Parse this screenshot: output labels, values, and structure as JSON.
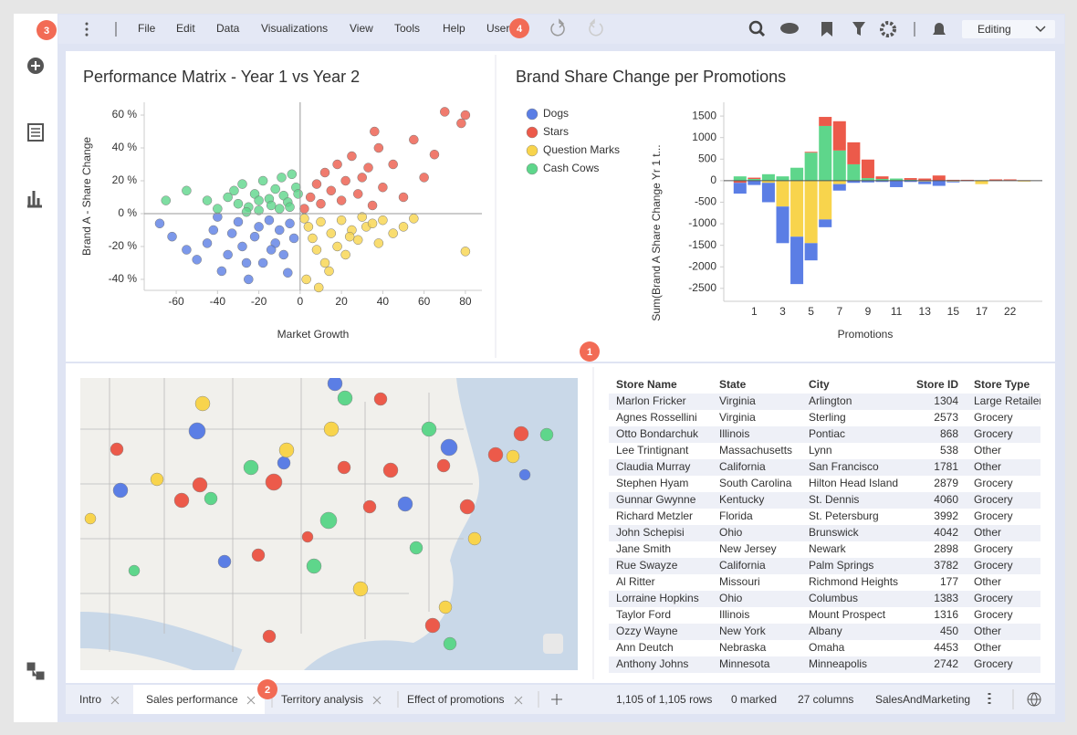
{
  "menu": [
    "File",
    "Edit",
    "Data",
    "Visualizations",
    "View",
    "Tools",
    "Help",
    "User"
  ],
  "mode": "Editing",
  "badges": [
    "3",
    "4",
    "1",
    "2"
  ],
  "chart_data": [
    {
      "type": "scatter",
      "title": "Performance Matrix - Year 1 vs Year 2",
      "x_label": "Market Growth",
      "y_label": "Brand A - Share Change",
      "xlim": [
        -75.5,
        88
      ],
      "ylim": [
        -46.7,
        67.8
      ],
      "xticks": [
        -60,
        -40,
        -20,
        0,
        20,
        40,
        60,
        80
      ],
      "yticks": [
        {
          "value": 60,
          "label": "60 %"
        },
        {
          "value": 40,
          "label": "40 %"
        },
        {
          "value": 20,
          "label": "20 %"
        },
        {
          "value": 0,
          "label": "0 %"
        },
        {
          "value": -20,
          "label": "-20 %"
        },
        {
          "value": -40,
          "label": "-40 %"
        }
      ],
      "series": [
        {
          "color": "#5b7ee5",
          "x": [
            -68,
            -62,
            -55,
            -50,
            -45,
            -42,
            -38,
            -35,
            -30,
            -28,
            -25,
            -22,
            -20,
            -18,
            -15,
            -12,
            -10,
            -8,
            -5,
            -3,
            -40,
            -33,
            -26,
            -14,
            -6
          ],
          "values": [
            -6,
            -14,
            -22,
            -28,
            -18,
            -10,
            -35,
            -25,
            -5,
            -20,
            -40,
            -14,
            -8,
            -30,
            -4,
            -18,
            -10,
            -25,
            -6,
            -15,
            -2,
            -12,
            -30,
            -22,
            -36
          ]
        },
        {
          "color": "#ec5a4a",
          "x": [
            2,
            5,
            8,
            10,
            12,
            15,
            18,
            20,
            22,
            25,
            28,
            30,
            33,
            35,
            38,
            40,
            45,
            50,
            55,
            60,
            65,
            70,
            78,
            80,
            36
          ],
          "values": [
            3,
            10,
            18,
            6,
            25,
            14,
            30,
            8,
            20,
            35,
            12,
            22,
            28,
            5,
            40,
            16,
            30,
            10,
            45,
            22,
            36,
            62,
            55,
            60,
            50
          ]
        },
        {
          "color": "#f8d44c",
          "x": [
            2,
            4,
            6,
            8,
            10,
            12,
            15,
            18,
            20,
            22,
            25,
            28,
            30,
            32,
            35,
            38,
            40,
            45,
            50,
            55,
            80,
            14,
            24,
            9,
            3
          ],
          "values": [
            -3,
            -8,
            -15,
            -22,
            -5,
            -30,
            -12,
            -20,
            -4,
            -25,
            -10,
            -16,
            -2,
            -8,
            -6,
            -18,
            -4,
            -12,
            -8,
            -3,
            -23,
            -35,
            -14,
            -45,
            -40
          ]
        },
        {
          "color": "#5ed68b",
          "x": [
            -65,
            -55,
            -45,
            -40,
            -35,
            -30,
            -28,
            -25,
            -22,
            -20,
            -18,
            -15,
            -12,
            -10,
            -8,
            -6,
            -4,
            -2,
            -26,
            -14,
            -32,
            -9,
            -20,
            -5,
            -1
          ],
          "values": [
            8,
            14,
            8,
            3,
            10,
            6,
            18,
            4,
            12,
            2,
            20,
            9,
            15,
            3,
            11,
            7,
            24,
            16,
            1,
            5,
            14,
            22,
            8,
            4,
            12
          ]
        }
      ]
    },
    {
      "type": "bar",
      "stacked": true,
      "title": "Brand Share Change per Promotions",
      "x_label": "Promotions",
      "y_label": "Sum(Brand A Share Change Yr 1 t...",
      "categories": [
        null,
        "1",
        null,
        "3",
        null,
        "5",
        null,
        "7",
        null,
        "9",
        null,
        "11",
        null,
        "13",
        null,
        "15",
        null,
        "17",
        null,
        "22",
        null
      ],
      "ylim": [
        -2800,
        1820
      ],
      "yticks": [
        -2500,
        -2000,
        -1500,
        -1000,
        -500,
        0,
        500,
        1000,
        1500
      ],
      "series": [
        {
          "name": "Dogs",
          "color": "#5b7ee5",
          "values": [
            -250,
            -100,
            -450,
            -850,
            -1100,
            -400,
            -180,
            -150,
            -50,
            -40,
            -30,
            -150,
            -30,
            -60,
            -120,
            -20,
            -10,
            0,
            0,
            0,
            0
          ]
        },
        {
          "name": "Stars",
          "color": "#ec5a4a",
          "values": [
            -50,
            30,
            0,
            0,
            0,
            20,
            210,
            680,
            510,
            430,
            60,
            0,
            40,
            50,
            120,
            20,
            20,
            0,
            30,
            20,
            10
          ]
        },
        {
          "name": "Question Marks",
          "color": "#f8d44c",
          "values": [
            0,
            0,
            -50,
            -600,
            -1300,
            -1450,
            -900,
            -80,
            0,
            0,
            0,
            0,
            0,
            -20,
            0,
            -20,
            0,
            -80,
            0,
            10,
            -20
          ]
        },
        {
          "name": "Cash Cows",
          "color": "#5ed68b",
          "values": [
            100,
            40,
            150,
            100,
            300,
            650,
            1270,
            700,
            380,
            60,
            40,
            50,
            20,
            0,
            0,
            0,
            0,
            10,
            0,
            0,
            0
          ]
        }
      ]
    }
  ],
  "table": {
    "columns": [
      "Store Name",
      "State",
      "City",
      "Store ID",
      "Store Type"
    ],
    "rows": [
      [
        "Marlon Fricker",
        "Virginia",
        "Arlington",
        1304,
        "Large Retailer"
      ],
      [
        "Agnes Rossellini",
        "Virginia",
        "Sterling",
        2573,
        "Grocery"
      ],
      [
        "Otto Bondarchuk",
        "Illinois",
        "Pontiac",
        868,
        "Grocery"
      ],
      [
        "Lee Trintignant",
        "Massachusetts",
        "Lynn",
        538,
        "Other"
      ],
      [
        "Claudia Murray",
        "California",
        "San Francisco",
        1781,
        "Other"
      ],
      [
        "Stephen Hyam",
        "South Carolina",
        "Hilton Head Island",
        2879,
        "Grocery"
      ],
      [
        "Gunnar Gwynne",
        "Kentucky",
        "St. Dennis",
        4060,
        "Grocery"
      ],
      [
        "Richard Metzler",
        "Florida",
        "St. Petersburg",
        3992,
        "Grocery"
      ],
      [
        "John Schepisi",
        "Ohio",
        "Brunswick",
        4042,
        "Other"
      ],
      [
        "Jane Smith",
        "New Jersey",
        "Newark",
        2898,
        "Grocery"
      ],
      [
        "Rue Swayze",
        "California",
        "Palm Springs",
        3782,
        "Grocery"
      ],
      [
        "Al Ritter",
        "Missouri",
        "Richmond Heights",
        177,
        "Other"
      ],
      [
        "Lorraine Hopkins",
        "Ohio",
        "Columbus",
        1383,
        "Grocery"
      ],
      [
        "Taylor Ford",
        "Illinois",
        "Mount Prospect",
        1316,
        "Grocery"
      ],
      [
        "Ozzy Wayne",
        "New York",
        "Albany",
        450,
        "Other"
      ],
      [
        "Ann Deutch",
        "Nebraska",
        "Omaha",
        4453,
        "Other"
      ],
      [
        "Anthony Johns",
        "Minnesota",
        "Minneapolis",
        2742,
        "Grocery"
      ]
    ]
  },
  "tabs": [
    "Intro",
    "Sales performance",
    "Territory analysis",
    "Effect of promotions"
  ],
  "status": [
    "1,105 of 1,105 rows",
    "0 marked",
    "27 columns",
    "SalesAndMarketing"
  ]
}
